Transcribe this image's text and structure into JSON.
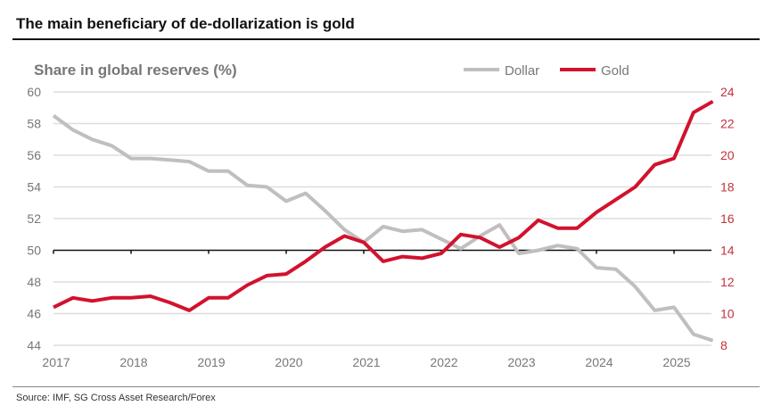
{
  "title": "The main beneficiary of de-dollarization is gold",
  "source": "Source: IMF, SG Cross Asset Research/Forex",
  "chart_data": {
    "type": "line",
    "subtitle": "Share in global reserves (%)",
    "x": [
      2017.0,
      2017.25,
      2017.5,
      2017.75,
      2018.0,
      2018.25,
      2018.5,
      2018.75,
      2019.0,
      2019.25,
      2019.5,
      2019.75,
      2020.0,
      2020.25,
      2020.5,
      2020.75,
      2021.0,
      2021.25,
      2021.5,
      2021.75,
      2022.0,
      2022.25,
      2022.5,
      2022.75,
      2023.0,
      2023.25,
      2023.5,
      2023.75,
      2024.0,
      2024.25,
      2024.5,
      2024.75,
      2025.0,
      2025.25,
      2025.5
    ],
    "xticks": [
      "2017",
      "2018",
      "2019",
      "2020",
      "2021",
      "2022",
      "2023",
      "2024",
      "2025"
    ],
    "xlim": [
      2017,
      2025.6
    ],
    "series": [
      {
        "name": "Dollar",
        "axis": "left",
        "color": "#c0bebe",
        "values": [
          58.5,
          57.6,
          57.0,
          56.6,
          55.8,
          55.8,
          55.7,
          55.6,
          55.0,
          55.0,
          54.1,
          54.0,
          53.1,
          53.6,
          52.5,
          51.3,
          50.5,
          51.5,
          51.2,
          51.3,
          50.7,
          50.1,
          50.9,
          51.6,
          49.8,
          50.0,
          50.3,
          50.1,
          48.9,
          48.8,
          47.7,
          46.2,
          46.4,
          44.7,
          44.3
        ]
      },
      {
        "name": "Gold",
        "axis": "right",
        "color": "#d2122e",
        "values": [
          10.4,
          11.0,
          10.8,
          11.0,
          11.0,
          11.1,
          10.7,
          10.2,
          11.0,
          11.0,
          11.8,
          12.4,
          12.5,
          13.3,
          14.2,
          14.9,
          14.5,
          13.3,
          13.6,
          13.5,
          13.8,
          15.0,
          14.8,
          14.2,
          14.8,
          15.9,
          15.4,
          15.4,
          16.4,
          17.2,
          18.0,
          19.4,
          19.8,
          22.7,
          23.4
        ]
      }
    ],
    "ylim_left": [
      44,
      60
    ],
    "yticks_left": [
      "44",
      "46",
      "48",
      "50",
      "52",
      "54",
      "56",
      "58",
      "60"
    ],
    "ylim_right": [
      8,
      24
    ],
    "yticks_right": [
      "8",
      "10",
      "12",
      "14",
      "16",
      "18",
      "20",
      "22",
      "24"
    ],
    "grid": true,
    "legend": "top-right"
  }
}
